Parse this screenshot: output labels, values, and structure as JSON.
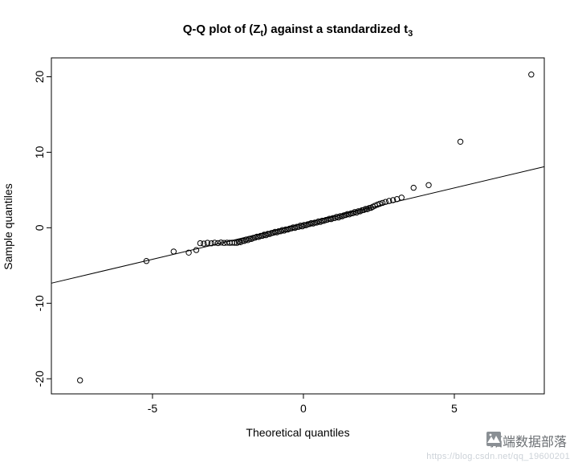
{
  "chart_data": {
    "type": "scatter",
    "variant": "qq-plot",
    "title": "Q-Q plot of (Zt) against a standardized t3",
    "title_parts": {
      "prefix": "Q-Q plot of (Z",
      "sub1": "t",
      "middle": ") against a standardized t",
      "sub2": "3"
    },
    "xlabel": "Theoretical quantiles",
    "ylabel": "Sample quantiles",
    "xlim": [
      -8.35,
      7.98
    ],
    "ylim": [
      -22.0,
      22.5
    ],
    "xticks": [
      -5,
      0,
      5
    ],
    "yticks": [
      -20,
      -10,
      0,
      10,
      20
    ],
    "grid": false,
    "legend": "none",
    "reference_line": {
      "slope": 0.945,
      "intercept": 0.55
    },
    "points": [
      [
        -7.4,
        -20.2
      ],
      [
        -5.2,
        -4.4
      ],
      [
        -4.3,
        -3.15
      ],
      [
        -3.8,
        -3.3
      ],
      [
        -3.55,
        -2.95
      ],
      [
        -3.42,
        -2.05
      ],
      [
        -3.3,
        -2.1
      ],
      [
        -3.18,
        -2.0
      ],
      [
        -3.05,
        -2.06
      ],
      [
        -2.94,
        -1.97
      ],
      [
        -2.83,
        -2.03
      ],
      [
        -2.73,
        -1.95
      ],
      [
        -2.63,
        -2.01
      ],
      [
        -2.53,
        -1.97
      ],
      [
        -2.44,
        -2.0
      ],
      [
        -2.36,
        -1.97
      ],
      [
        -2.28,
        -1.99
      ],
      [
        -2.2,
        -2.0
      ],
      [
        -2.14,
        -1.87
      ],
      [
        -2.08,
        -1.91
      ],
      [
        -2.02,
        -1.75
      ],
      [
        -1.96,
        -1.74
      ],
      [
        -1.9,
        -1.57
      ],
      [
        -1.84,
        -1.64
      ],
      [
        -1.78,
        -1.46
      ],
      [
        -1.72,
        -1.48
      ],
      [
        -1.66,
        -1.35
      ],
      [
        -1.6,
        -1.3
      ],
      [
        -1.54,
        -1.18
      ],
      [
        -1.48,
        -1.22
      ],
      [
        -1.42,
        -1.08
      ],
      [
        -1.36,
        -1.07
      ],
      [
        -1.3,
        -0.91
      ],
      [
        -1.24,
        -0.99
      ],
      [
        -1.18,
        -0.81
      ],
      [
        -1.12,
        -0.83
      ],
      [
        -1.06,
        -0.71
      ],
      [
        -1.0,
        -0.67
      ],
      [
        -0.94,
        -0.55
      ],
      [
        -0.88,
        -0.6
      ],
      [
        -0.82,
        -0.46
      ],
      [
        -0.76,
        -0.46
      ],
      [
        -0.7,
        -0.3
      ],
      [
        -0.64,
        -0.38
      ],
      [
        -0.58,
        -0.22
      ],
      [
        -0.52,
        -0.24
      ],
      [
        -0.46,
        -0.12
      ],
      [
        -0.4,
        -0.08
      ],
      [
        -0.34,
        0.04
      ],
      [
        -0.28,
        -0.02
      ],
      [
        -0.22,
        0.12
      ],
      [
        -0.16,
        0.12
      ],
      [
        -0.1,
        0.28
      ],
      [
        -0.04,
        0.19
      ],
      [
        0.02,
        0.36
      ],
      [
        0.08,
        0.34
      ],
      [
        0.14,
        0.45
      ],
      [
        0.2,
        0.49
      ],
      [
        0.26,
        0.61
      ],
      [
        0.32,
        0.56
      ],
      [
        0.38,
        0.69
      ],
      [
        0.44,
        0.69
      ],
      [
        0.5,
        0.85
      ],
      [
        0.56,
        0.77
      ],
      [
        0.62,
        0.93
      ],
      [
        0.68,
        0.91
      ],
      [
        0.74,
        1.03
      ],
      [
        0.8,
        1.07
      ],
      [
        0.86,
        1.19
      ],
      [
        0.92,
        1.14
      ],
      [
        0.98,
        1.28
      ],
      [
        1.04,
        1.28
      ],
      [
        1.1,
        1.44
      ],
      [
        1.16,
        1.36
      ],
      [
        1.22,
        1.54
      ],
      [
        1.28,
        1.52
      ],
      [
        1.34,
        1.64
      ],
      [
        1.4,
        1.69
      ],
      [
        1.46,
        1.81
      ],
      [
        1.52,
        1.76
      ],
      [
        1.58,
        1.91
      ],
      [
        1.64,
        1.92
      ],
      [
        1.7,
        2.08
      ],
      [
        1.76,
        2.01
      ],
      [
        1.82,
        2.19
      ],
      [
        1.88,
        2.18
      ],
      [
        1.94,
        2.31
      ],
      [
        2.0,
        2.36
      ],
      [
        2.06,
        2.49
      ],
      [
        2.12,
        2.45
      ],
      [
        2.18,
        2.61
      ],
      [
        2.24,
        2.65
      ],
      [
        2.3,
        2.78
      ],
      [
        2.37,
        2.92
      ],
      [
        2.45,
        3.06
      ],
      [
        2.53,
        3.18
      ],
      [
        2.62,
        3.3
      ],
      [
        2.72,
        3.42
      ],
      [
        2.84,
        3.55
      ],
      [
        2.97,
        3.66
      ],
      [
        3.1,
        3.8
      ],
      [
        3.25,
        4.0
      ],
      [
        3.65,
        5.3
      ],
      [
        4.15,
        5.65
      ],
      [
        5.2,
        11.4
      ],
      [
        7.55,
        20.3
      ]
    ]
  },
  "watermark": {
    "brand": "拓端数据部落",
    "url": "https://blog.csdn.net/qq_19600201"
  }
}
